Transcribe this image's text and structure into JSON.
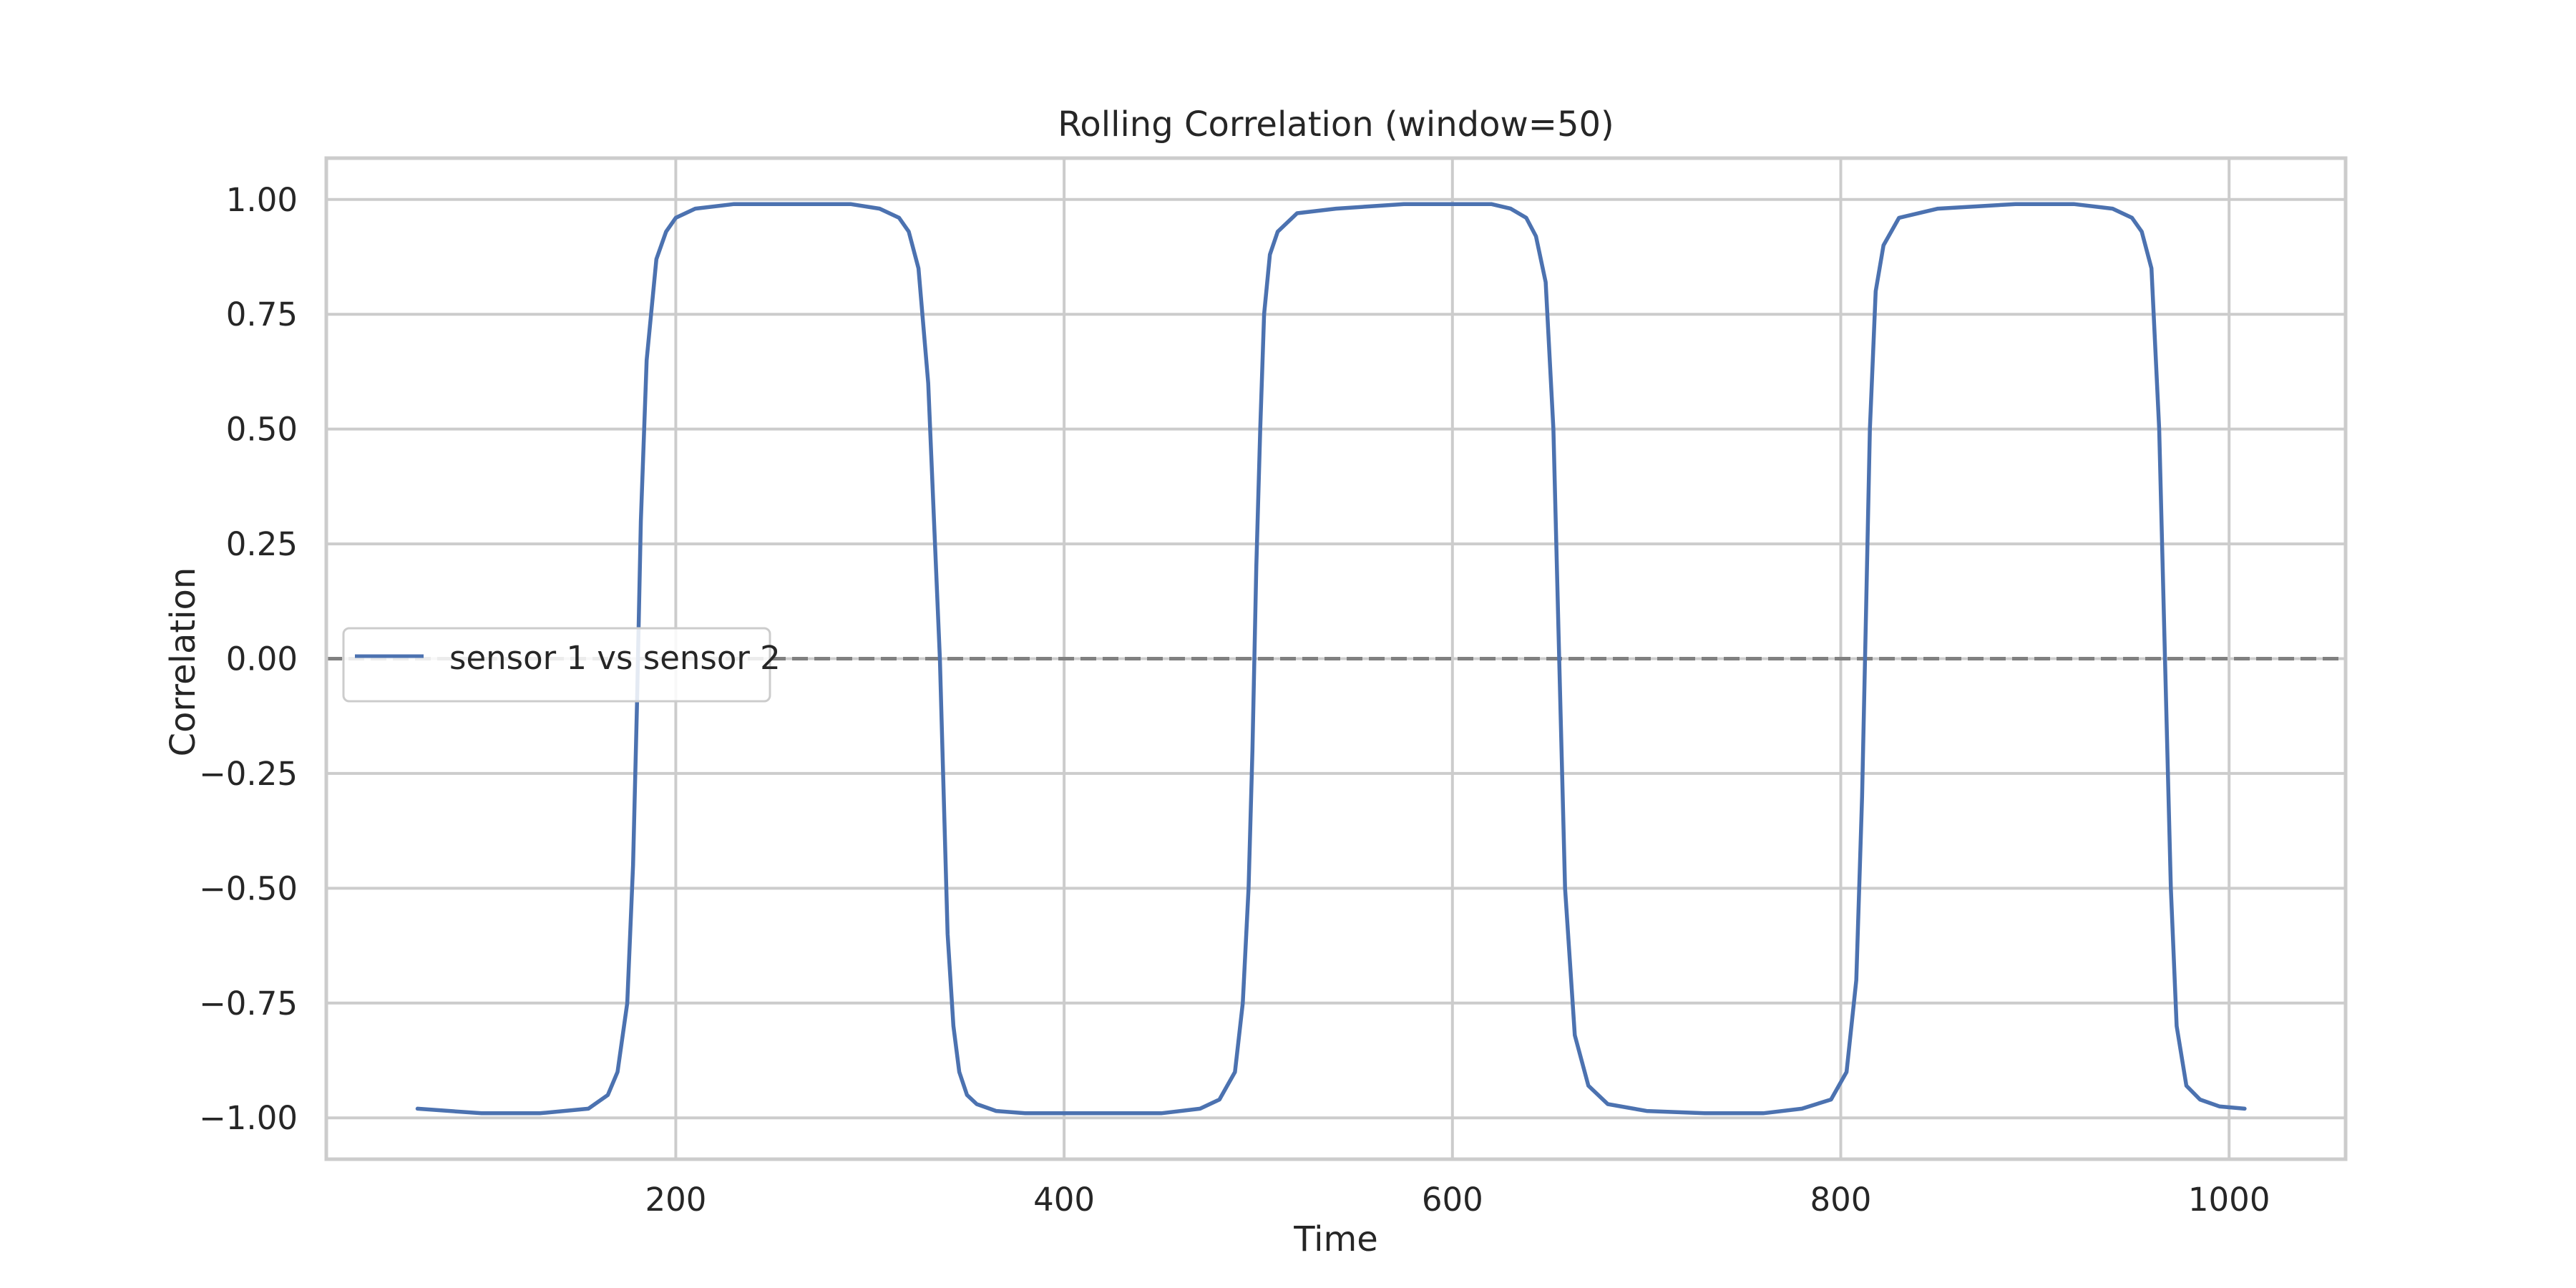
{
  "chart_data": {
    "type": "line",
    "title": "Rolling Correlation (window=50)",
    "xlabel": "Time",
    "ylabel": "Correlation",
    "xlim": [
      20,
      1060
    ],
    "ylim": [
      -1.09,
      1.09
    ],
    "x_ticks": [
      200,
      400,
      600,
      800,
      1000
    ],
    "y_ticks": [
      1.0,
      0.75,
      0.5,
      0.25,
      0.0,
      -0.25,
      -0.5,
      -0.75,
      -1.0
    ],
    "x_tick_labels": [
      "200",
      "400",
      "600",
      "800",
      "1000"
    ],
    "y_tick_labels": [
      "1.00",
      "0.75",
      "0.50",
      "0.25",
      "0.00",
      "−0.25",
      "−0.50",
      "−0.75",
      "−1.00"
    ],
    "grid": true,
    "legend_position": "center-left",
    "reference_line": {
      "y": 0,
      "style": "dashed",
      "color": "#808080"
    },
    "series": [
      {
        "name": "sensor 1 vs sensor 2",
        "color": "#4c72b0",
        "x": [
          67,
          100,
          130,
          155,
          165,
          170,
          175,
          178,
          180,
          182,
          185,
          190,
          195,
          200,
          210,
          230,
          260,
          290,
          305,
          315,
          320,
          325,
          330,
          333,
          336,
          338,
          340,
          343,
          346,
          350,
          355,
          365,
          380,
          400,
          420,
          450,
          470,
          480,
          488,
          492,
          495,
          497,
          499,
          501,
          503,
          506,
          510,
          520,
          540,
          575,
          600,
          620,
          630,
          638,
          643,
          648,
          652,
          655,
          658,
          663,
          670,
          680,
          700,
          730,
          760,
          780,
          795,
          803,
          808,
          811,
          813,
          815,
          818,
          822,
          830,
          850,
          890,
          920,
          940,
          950,
          955,
          960,
          964,
          967,
          970,
          973,
          978,
          985,
          995,
          1008
        ],
        "y": [
          -0.98,
          -0.99,
          -0.99,
          -0.98,
          -0.95,
          -0.9,
          -0.75,
          -0.45,
          -0.1,
          0.3,
          0.65,
          0.87,
          0.93,
          0.96,
          0.98,
          0.99,
          0.99,
          0.99,
          0.98,
          0.96,
          0.93,
          0.85,
          0.6,
          0.3,
          0.0,
          -0.3,
          -0.6,
          -0.8,
          -0.9,
          -0.95,
          -0.97,
          -0.985,
          -0.99,
          -0.99,
          -0.99,
          -0.99,
          -0.98,
          -0.96,
          -0.9,
          -0.75,
          -0.5,
          -0.2,
          0.2,
          0.5,
          0.75,
          0.88,
          0.93,
          0.97,
          0.98,
          0.99,
          0.99,
          0.99,
          0.98,
          0.96,
          0.92,
          0.82,
          0.5,
          0.0,
          -0.5,
          -0.82,
          -0.93,
          -0.97,
          -0.985,
          -0.99,
          -0.99,
          -0.98,
          -0.96,
          -0.9,
          -0.7,
          -0.3,
          0.1,
          0.5,
          0.8,
          0.9,
          0.96,
          0.98,
          0.99,
          0.99,
          0.98,
          0.96,
          0.93,
          0.85,
          0.5,
          0.0,
          -0.5,
          -0.8,
          -0.93,
          -0.96,
          -0.975,
          -0.98
        ]
      }
    ]
  }
}
